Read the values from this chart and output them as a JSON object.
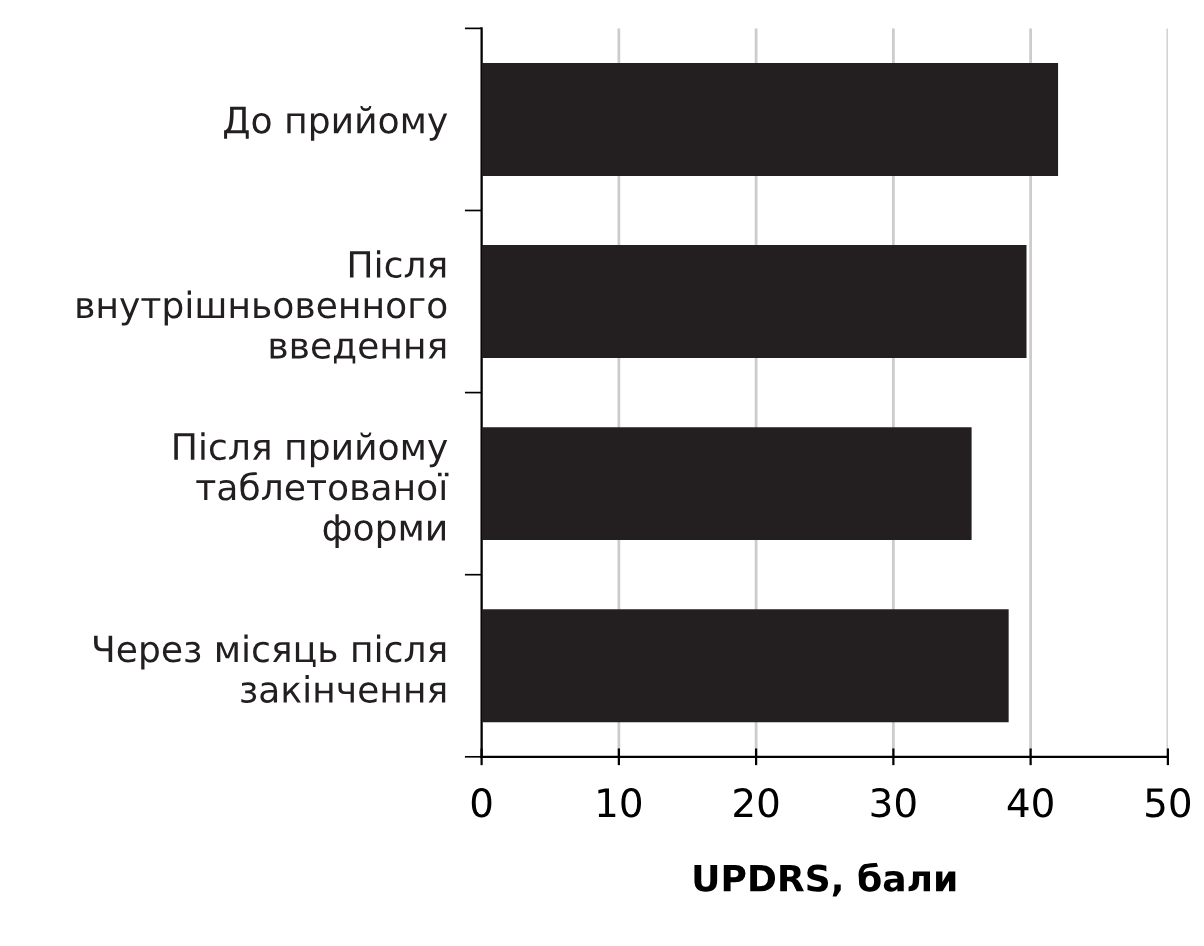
{
  "chart_data": {
    "type": "bar",
    "orientation": "horizontal",
    "xlabel": "UPDRS, бали",
    "categories": [
      "До прийому",
      "Після\nвнутрішньовенного\nвведення",
      "Після прийому\nтаблетованої\nформи",
      "Через місяць після\nзакінчення"
    ],
    "values": [
      42,
      39.7,
      35.7,
      38.4
    ],
    "color": "#231f20",
    "xlim": [
      0,
      50
    ],
    "xticks": [
      0,
      10,
      20,
      30,
      40,
      50
    ],
    "grid": "x"
  }
}
